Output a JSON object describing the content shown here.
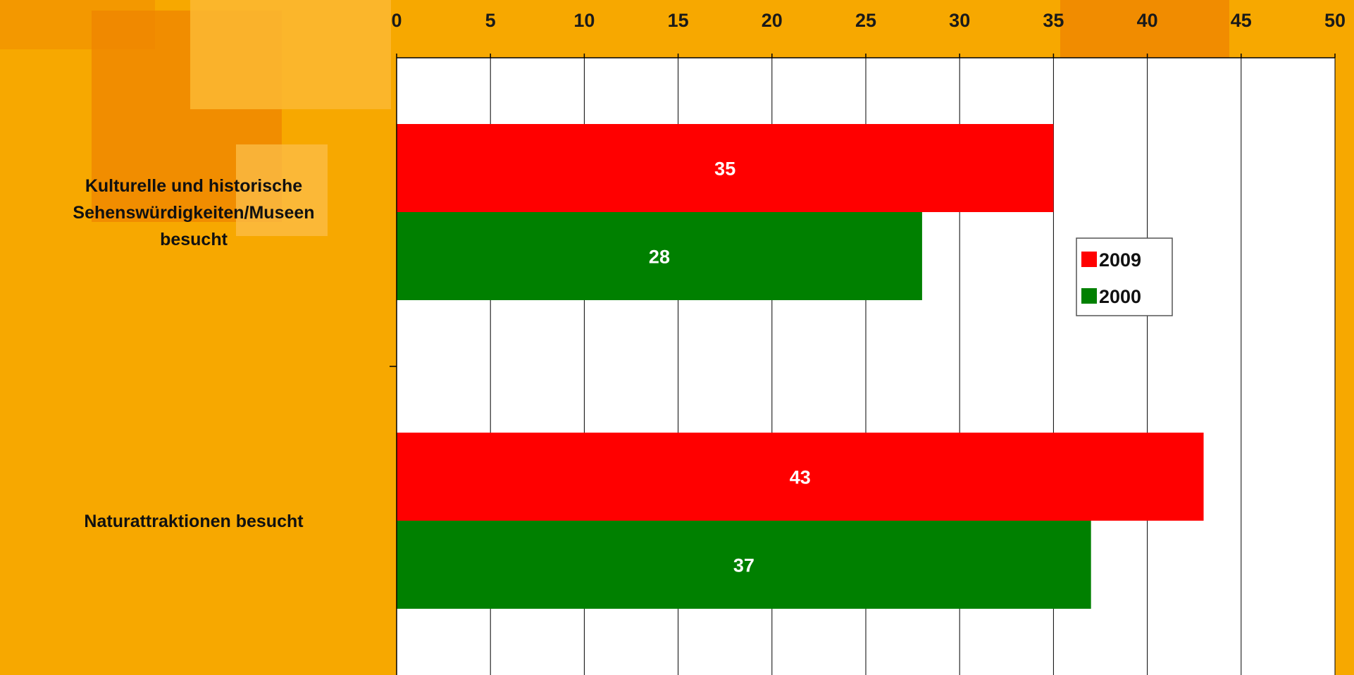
{
  "chart_data": {
    "type": "bar",
    "orientation": "horizontal",
    "categories": [
      "Kulturelle und historische Sehenswürdigkeiten/Museen besucht",
      "Naturattraktionen besucht"
    ],
    "category_label_lines": [
      [
        "Kulturelle und historische",
        "Sehenswürdigkeiten/Museen",
        "besucht"
      ],
      [
        "Naturattraktionen besucht"
      ]
    ],
    "series": [
      {
        "name": "2009",
        "color": "#ff0000",
        "values": [
          35,
          43
        ]
      },
      {
        "name": "2000",
        "color": "#008000",
        "values": [
          28,
          37
        ]
      }
    ],
    "xlim": [
      0,
      50
    ],
    "xticks": [
      "0",
      "5",
      "10",
      "15",
      "20",
      "25",
      "30",
      "35",
      "40",
      "45",
      "50"
    ],
    "x_axis_position": "top",
    "grid": "vertical",
    "legend_placement": "right"
  }
}
